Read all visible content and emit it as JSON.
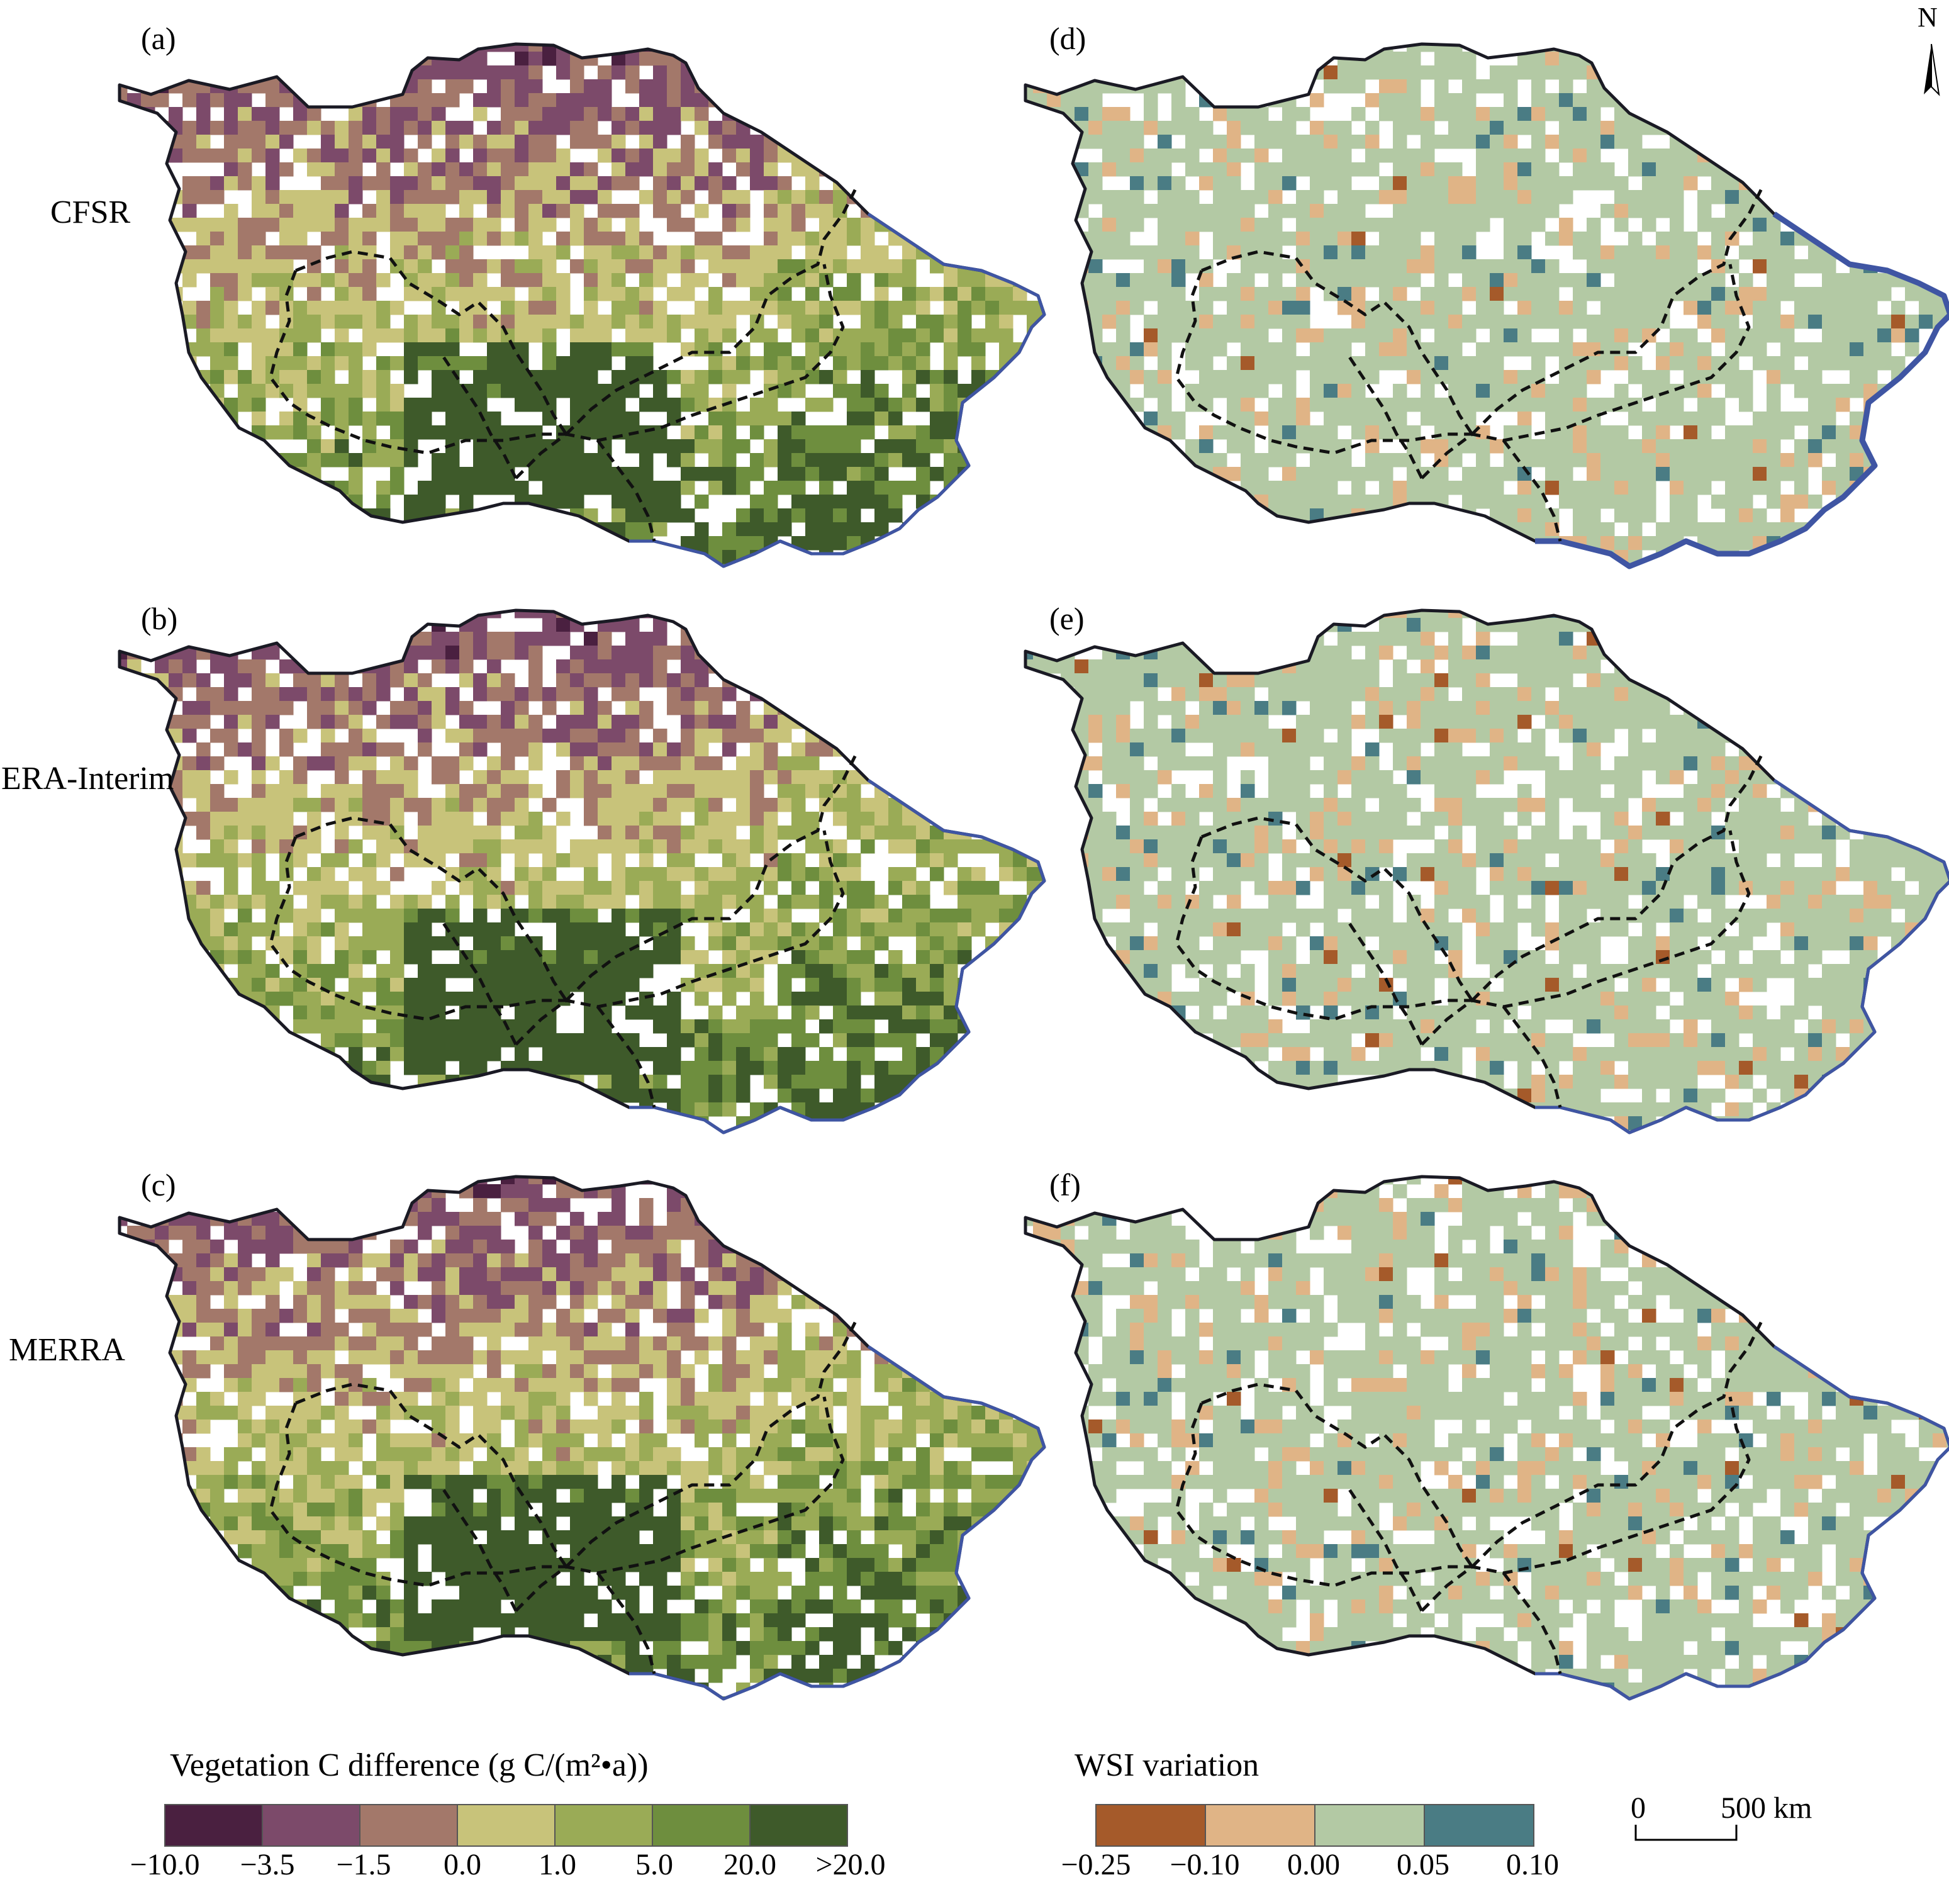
{
  "panels": [
    {
      "id": "a",
      "label": "(a)",
      "dataset": "CFSR",
      "variable": "Vegetation C difference"
    },
    {
      "id": "b",
      "label": "(b)",
      "dataset": "ERA-Interim",
      "variable": "Vegetation C difference"
    },
    {
      "id": "c",
      "label": "(c)",
      "dataset": "MERRA",
      "variable": "Vegetation C difference"
    },
    {
      "id": "d",
      "label": "(d)",
      "dataset": "CFSR",
      "variable": "WSI variation"
    },
    {
      "id": "e",
      "label": "(e)",
      "dataset": "ERA-Interim",
      "variable": "WSI variation"
    },
    {
      "id": "f",
      "label": "(f)",
      "dataset": "MERRA",
      "variable": "WSI variation"
    }
  ],
  "row_labels": [
    "CFSR",
    "ERA-Interim",
    "MERRA"
  ],
  "veg_legend": {
    "title": "Vegetation C difference (g C/(m²•a))",
    "colors": [
      "#4a2040",
      "#7c4a6a",
      "#a3786a",
      "#c8c37a",
      "#9aab56",
      "#6e8e3e",
      "#3e5a2a"
    ],
    "ticks": [
      "−10.0",
      "−3.5",
      "−1.5",
      "0.0",
      "1.0",
      "5.0",
      "20.0",
      ">20.0"
    ]
  },
  "wsi_legend": {
    "title": "WSI variation",
    "colors": [
      "#a55a2a",
      "#e0b486",
      "#b3c9a4",
      "#4a7c84"
    ],
    "ticks": [
      "−0.25",
      "−0.10",
      "0.00",
      "0.05",
      "0.10"
    ]
  },
  "scale_bar": {
    "start": "0",
    "end": "500 km"
  },
  "north_arrow": {
    "label": "N",
    "icon": "north-arrow-icon"
  },
  "map_colors": {
    "outline": "#1a1a24",
    "river_boundary": "#3f55a3",
    "internal_border": "#111111",
    "no_data": "#ffffff"
  }
}
